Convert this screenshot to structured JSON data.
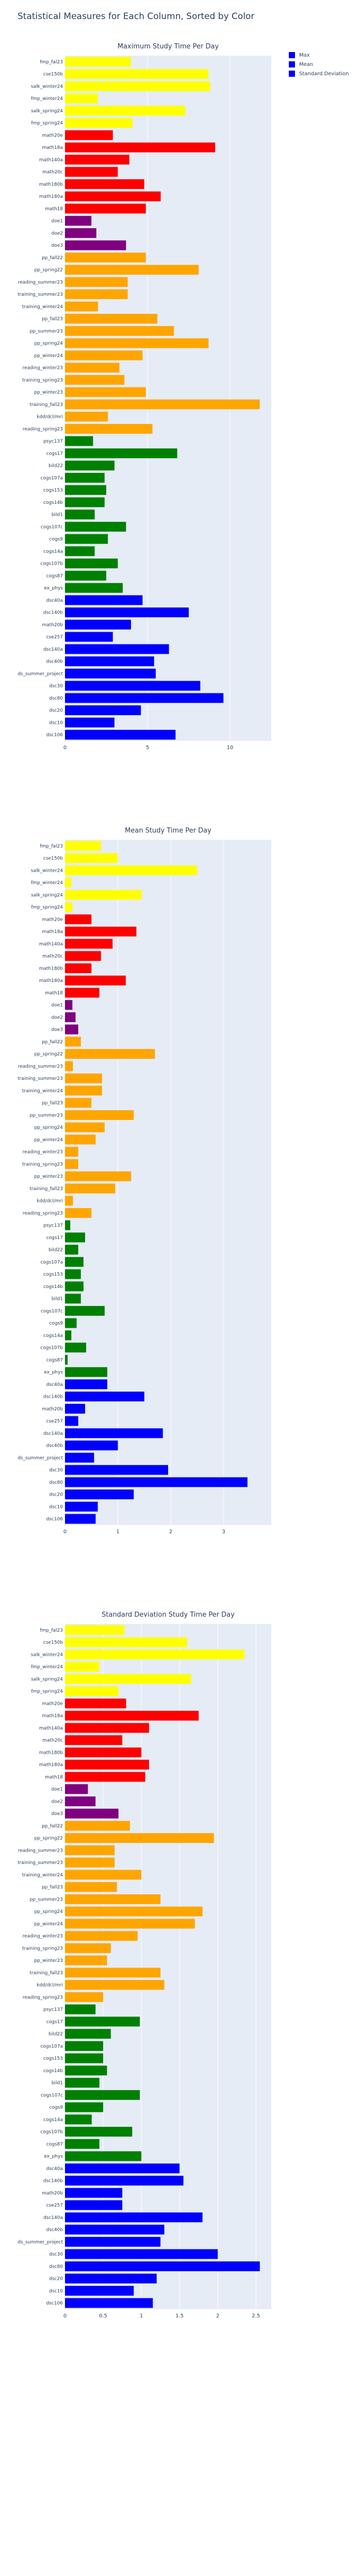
{
  "figure": {
    "title": "Statistical Measures for Each Column, Sorted by Color"
  },
  "legend": {
    "items": [
      {
        "label": "Max",
        "color": "#0000ff"
      },
      {
        "label": "Mean",
        "color": "#0000ff"
      },
      {
        "label": "Standard Deviation",
        "color": "#0000ff"
      }
    ]
  },
  "chart_data": [
    {
      "type": "bar",
      "orientation": "horizontal",
      "title": "Maximum Study Time Per Day",
      "xlim": [
        0,
        12.5
      ],
      "xticks": [
        0,
        5,
        10
      ],
      "categories": [
        "fmp_fal23",
        "cse150b",
        "salk_winter24",
        "fmp_winter24",
        "salk_spring24",
        "fmp_spring24",
        "math20e",
        "math18a",
        "math140a",
        "math20c",
        "math180b",
        "math180a",
        "math18",
        "doe1",
        "doe2",
        "doe3",
        "pp_fall22",
        "pp_spring22",
        "reading_summer23",
        "training_summer23",
        "training_winter24",
        "pp_fall23",
        "pp_summer23",
        "pp_spring24",
        "pp_winter24",
        "reading_winter23",
        "training_spring23",
        "pp_winter23",
        "training_fall23",
        "kdd/dcl/mri",
        "reading_spring23",
        "psyc137",
        "cogs17",
        "bild22",
        "cogs107a",
        "cogs153",
        "cogs14b",
        "bild1",
        "cogs107c",
        "cogs9",
        "cogs14a",
        "cogs107b",
        "cogs87",
        "ex_phys",
        "dsc40a",
        "dsc140b",
        "math20b",
        "cse257",
        "dsc140a",
        "dsc40b",
        "ds_summer_project",
        "dsc30",
        "dsc80",
        "dsc20",
        "dsc10",
        "dsc106"
      ],
      "values": [
        4.0,
        8.7,
        8.8,
        2.0,
        7.3,
        4.1,
        2.9,
        9.1,
        3.9,
        3.2,
        4.8,
        5.8,
        4.9,
        1.6,
        1.9,
        3.7,
        4.9,
        8.1,
        3.8,
        3.8,
        2.0,
        5.6,
        6.6,
        8.7,
        4.7,
        3.3,
        3.6,
        4.9,
        11.8,
        2.6,
        5.3,
        1.7,
        6.8,
        3.0,
        2.4,
        2.5,
        2.4,
        1.8,
        3.7,
        2.6,
        1.8,
        3.2,
        2.5,
        3.5,
        4.7,
        7.5,
        4.0,
        2.9,
        6.3,
        5.4,
        5.5,
        8.2,
        9.6,
        4.6,
        3.0,
        6.7
      ]
    },
    {
      "type": "bar",
      "orientation": "horizontal",
      "title": "Mean Study Time Per Day",
      "xlim": [
        0,
        3.9
      ],
      "xticks": [
        0,
        1,
        2,
        3
      ],
      "categories": [
        "fmp_fal23",
        "cse150b",
        "salk_winter24",
        "fmp_winter24",
        "salk_spring24",
        "fmp_spring24",
        "math20e",
        "math18a",
        "math140a",
        "math20c",
        "math180b",
        "math180a",
        "math18",
        "doe1",
        "doe2",
        "doe3",
        "pp_fall22",
        "pp_spring22",
        "reading_summer23",
        "training_summer23",
        "training_winter24",
        "pp_fall23",
        "pp_summer23",
        "pp_spring24",
        "pp_winter24",
        "reading_winter23",
        "training_spring23",
        "pp_winter23",
        "training_fall23",
        "kdd/dcl/mri",
        "reading_spring23",
        "psyc137",
        "cogs17",
        "bild22",
        "cogs107a",
        "cogs153",
        "cogs14b",
        "bild1",
        "cogs107c",
        "cogs9",
        "cogs14a",
        "cogs107b",
        "cogs87",
        "ex_phys",
        "dsc40a",
        "dsc140b",
        "math20b",
        "cse257",
        "dsc140a",
        "dsc40b",
        "ds_summer_project",
        "dsc30",
        "dsc80",
        "dsc20",
        "dsc10",
        "dsc106"
      ],
      "values": [
        0.68,
        1.0,
        2.5,
        0.12,
        1.45,
        0.14,
        0.5,
        1.35,
        0.9,
        0.68,
        0.5,
        1.15,
        0.65,
        0.14,
        0.2,
        0.25,
        0.3,
        1.7,
        0.15,
        0.7,
        0.7,
        0.5,
        1.3,
        0.75,
        0.58,
        0.25,
        0.25,
        1.25,
        0.95,
        0.15,
        0.5,
        0.1,
        0.38,
        0.25,
        0.35,
        0.3,
        0.35,
        0.3,
        0.75,
        0.22,
        0.12,
        0.4,
        0.05,
        0.8,
        0.8,
        1.5,
        0.38,
        0.25,
        1.85,
        1.0,
        0.55,
        1.95,
        3.45,
        1.3,
        0.62,
        0.58
      ]
    },
    {
      "type": "bar",
      "orientation": "horizontal",
      "title": "Standard Deviation Study Time Per Day",
      "xlim": [
        0,
        2.7
      ],
      "xticks": [
        0,
        0.5,
        1,
        1.5,
        2,
        2.5
      ],
      "categories": [
        "fmp_fal23",
        "cse150b",
        "salk_winter24",
        "fmp_winter24",
        "salk_spring24",
        "fmp_spring24",
        "math20e",
        "math18a",
        "math140a",
        "math20c",
        "math180b",
        "math180a",
        "math18",
        "doe1",
        "doe2",
        "doe3",
        "pp_fall22",
        "pp_spring22",
        "reading_summer23",
        "training_summer23",
        "training_winter24",
        "pp_fall23",
        "pp_summer23",
        "pp_spring24",
        "pp_winter24",
        "reading_winter23",
        "training_spring23",
        "pp_winter23",
        "training_fall23",
        "kdd/dcl/mri",
        "reading_spring23",
        "psyc137",
        "cogs17",
        "bild22",
        "cogs107a",
        "cogs153",
        "cogs14b",
        "bild1",
        "cogs107c",
        "cogs9",
        "cogs14a",
        "cogs107b",
        "cogs87",
        "ex_phys",
        "dsc40a",
        "dsc140b",
        "math20b",
        "cse257",
        "dsc140a",
        "dsc40b",
        "ds_summer_project",
        "dsc30",
        "dsc80",
        "dsc20",
        "dsc10",
        "dsc106"
      ],
      "values": [
        0.78,
        1.6,
        2.35,
        0.45,
        1.65,
        0.7,
        0.8,
        1.75,
        1.1,
        0.75,
        1.0,
        1.1,
        1.05,
        0.3,
        0.4,
        0.7,
        0.85,
        1.95,
        0.65,
        0.65,
        1.0,
        0.68,
        1.25,
        1.8,
        1.7,
        0.95,
        0.6,
        0.55,
        1.25,
        1.3,
        0.5,
        0.4,
        0.98,
        0.6,
        0.5,
        0.5,
        0.55,
        0.45,
        0.98,
        0.5,
        0.35,
        0.88,
        0.45,
        1.0,
        1.5,
        1.55,
        0.75,
        0.75,
        1.8,
        1.3,
        1.25,
        2.0,
        2.55,
        1.2,
        0.9,
        1.15
      ]
    }
  ],
  "group_colors": {
    "yellow": "#ffff00",
    "red": "#ff0000",
    "purple": "#800080",
    "orange": "#ffa500",
    "green": "#008000",
    "blue": "#0000ff"
  },
  "group_sizes": {
    "yellow": 6,
    "red": 7,
    "purple": 3,
    "orange": 15,
    "green": 13,
    "blue": 12
  }
}
